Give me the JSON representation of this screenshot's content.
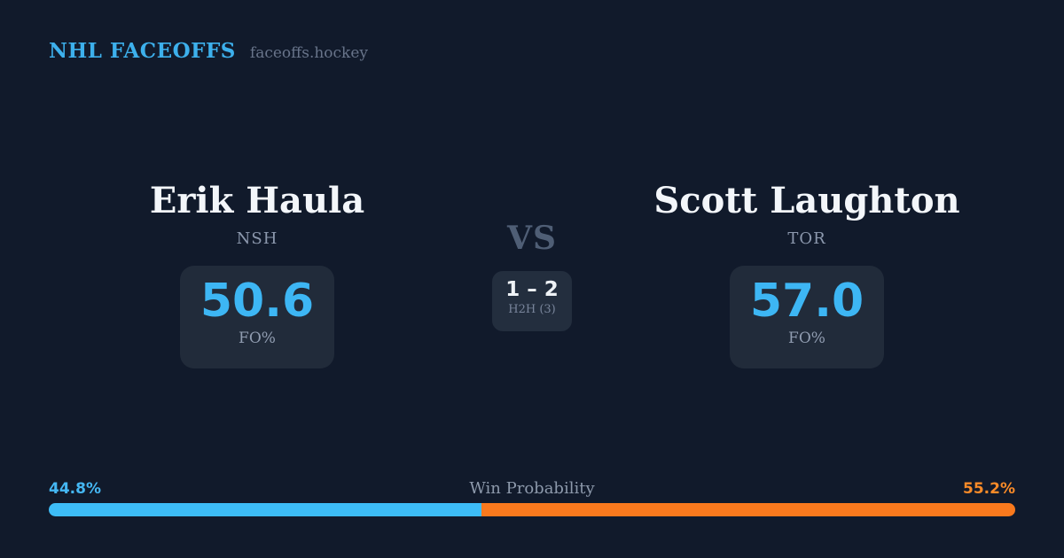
{
  "header": {
    "brand": "NHL FACEOFFS",
    "site": "faceoffs.hockey"
  },
  "left_player": {
    "name": "Erik Haula",
    "team": "NSH",
    "stat_value": "50.6",
    "stat_label": "FO%"
  },
  "matchup": {
    "vs_label": "VS",
    "h2h_score": "1 – 2",
    "h2h_label": "H2H (3)"
  },
  "right_player": {
    "name": "Scott Laughton",
    "team": "TOR",
    "stat_value": "57.0",
    "stat_label": "FO%"
  },
  "win_probability": {
    "title": "Win Probability",
    "left_pct_text": "44.8%",
    "right_pct_text": "55.2%",
    "left_value": 44.8,
    "right_value": 55.2
  },
  "colors": {
    "background": "#111a2b",
    "card_background": "#212b3a",
    "accent_blue": "#3db6f4",
    "accent_orange": "#f9791d",
    "text_primary": "#f3f6fa",
    "text_muted": "#8c98ad"
  }
}
